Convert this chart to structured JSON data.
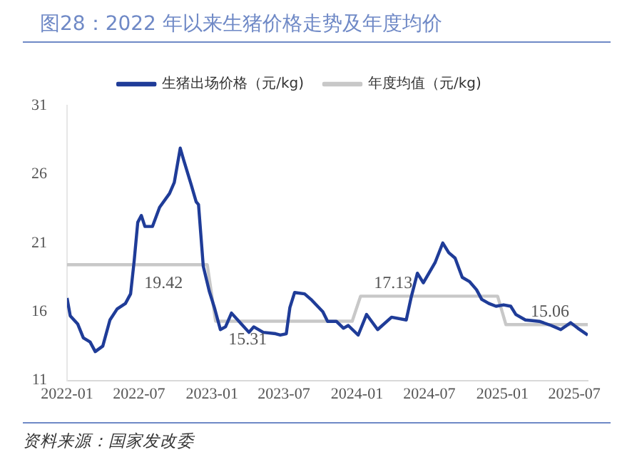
{
  "chart_data": {
    "type": "line",
    "title": "图28：2022 年以来生猪价格走势及年度均价",
    "annotations": [
      "资料来源：国家发改委"
    ],
    "xlim": [
      "2022-01-01",
      "2025-08-04"
    ],
    "xticks": [
      "2022-01",
      "2022-07",
      "2023-01",
      "2023-07",
      "2024-01",
      "2024-07",
      "2025-01",
      "2025-07"
    ],
    "ylim": [
      11,
      31
    ],
    "yticks": [
      11,
      16,
      21,
      26,
      31
    ],
    "grid": false,
    "legend": "top",
    "marker": "none",
    "line_style": "solid",
    "series": [
      {
        "name": "生猪出场价格（元/kg)",
        "color": "#1f3c98",
        "x": [
          "2022-01-01",
          "2022-01-09",
          "2022-01-28",
          "2022-02-11",
          "2022-02-28",
          "2022-03-13",
          "2022-04-01",
          "2022-04-19",
          "2022-05-07",
          "2022-05-28",
          "2022-06-10",
          "2022-06-19",
          "2022-06-28",
          "2022-07-07",
          "2022-07-16",
          "2022-08-04",
          "2022-08-22",
          "2022-09-16",
          "2022-09-28",
          "2022-10-13",
          "2022-10-22",
          "2022-11-10",
          "2022-11-22",
          "2022-11-28",
          "2022-12-10",
          "2022-12-25",
          "2023-01-07",
          "2023-01-22",
          "2023-02-04",
          "2023-02-19",
          "2023-03-16",
          "2023-04-04",
          "2023-04-16",
          "2023-05-10",
          "2023-06-10",
          "2023-06-22",
          "2023-07-07",
          "2023-07-16",
          "2023-07-28",
          "2023-08-22",
          "2023-09-07",
          "2023-10-07",
          "2023-10-19",
          "2023-11-10",
          "2023-11-28",
          "2023-12-10",
          "2024-01-04",
          "2024-01-25",
          "2024-02-22",
          "2024-03-28",
          "2024-05-04",
          "2024-05-16",
          "2024-06-01",
          "2024-06-16",
          "2024-07-16",
          "2024-08-04",
          "2024-08-19",
          "2024-09-04",
          "2024-09-22",
          "2024-10-10",
          "2024-10-28",
          "2024-11-10",
          "2024-11-28",
          "2024-12-16",
          "2025-01-04",
          "2025-01-22",
          "2025-02-04",
          "2025-02-28",
          "2025-04-04",
          "2025-05-04",
          "2025-05-28",
          "2025-06-22",
          "2025-07-10",
          "2025-08-04"
        ],
        "values": [
          17.0,
          15.7,
          15.1,
          14.1,
          13.8,
          13.1,
          13.5,
          15.4,
          16.2,
          16.6,
          17.3,
          19.7,
          22.5,
          23.0,
          22.2,
          22.2,
          23.6,
          24.6,
          25.4,
          27.9,
          27.0,
          25.2,
          24.0,
          23.8,
          19.3,
          17.5,
          16.3,
          14.7,
          14.9,
          15.9,
          15.1,
          14.5,
          14.9,
          14.5,
          14.4,
          14.3,
          14.4,
          16.3,
          17.4,
          17.3,
          16.9,
          16.0,
          15.3,
          15.3,
          14.8,
          15.0,
          14.3,
          15.8,
          14.7,
          15.6,
          15.4,
          17.0,
          18.8,
          18.1,
          19.6,
          21.0,
          20.3,
          19.9,
          18.5,
          18.2,
          17.6,
          16.9,
          16.6,
          16.4,
          16.5,
          16.4,
          15.8,
          15.4,
          15.3,
          15.0,
          14.7,
          15.2,
          14.8,
          14.3
        ]
      },
      {
        "name": "年度均值（元/kg)",
        "color": "#c8c8c8",
        "x": [
          "2022-01-01",
          "2022-09-01",
          "2022-12-20",
          "2023-01-10",
          "2023-04-01",
          "2023-12-20",
          "2024-01-10",
          "2024-04-01",
          "2024-12-20",
          "2025-01-10",
          "2025-05-01",
          "2025-08-04"
        ],
        "values": [
          19.42,
          19.42,
          19.42,
          15.31,
          15.31,
          15.31,
          17.13,
          17.13,
          17.13,
          15.06,
          15.06,
          15.06
        ],
        "value_labels": [
          null,
          "19.42",
          null,
          null,
          "15.31",
          null,
          null,
          "17.13",
          null,
          null,
          "15.06",
          null
        ]
      }
    ]
  }
}
